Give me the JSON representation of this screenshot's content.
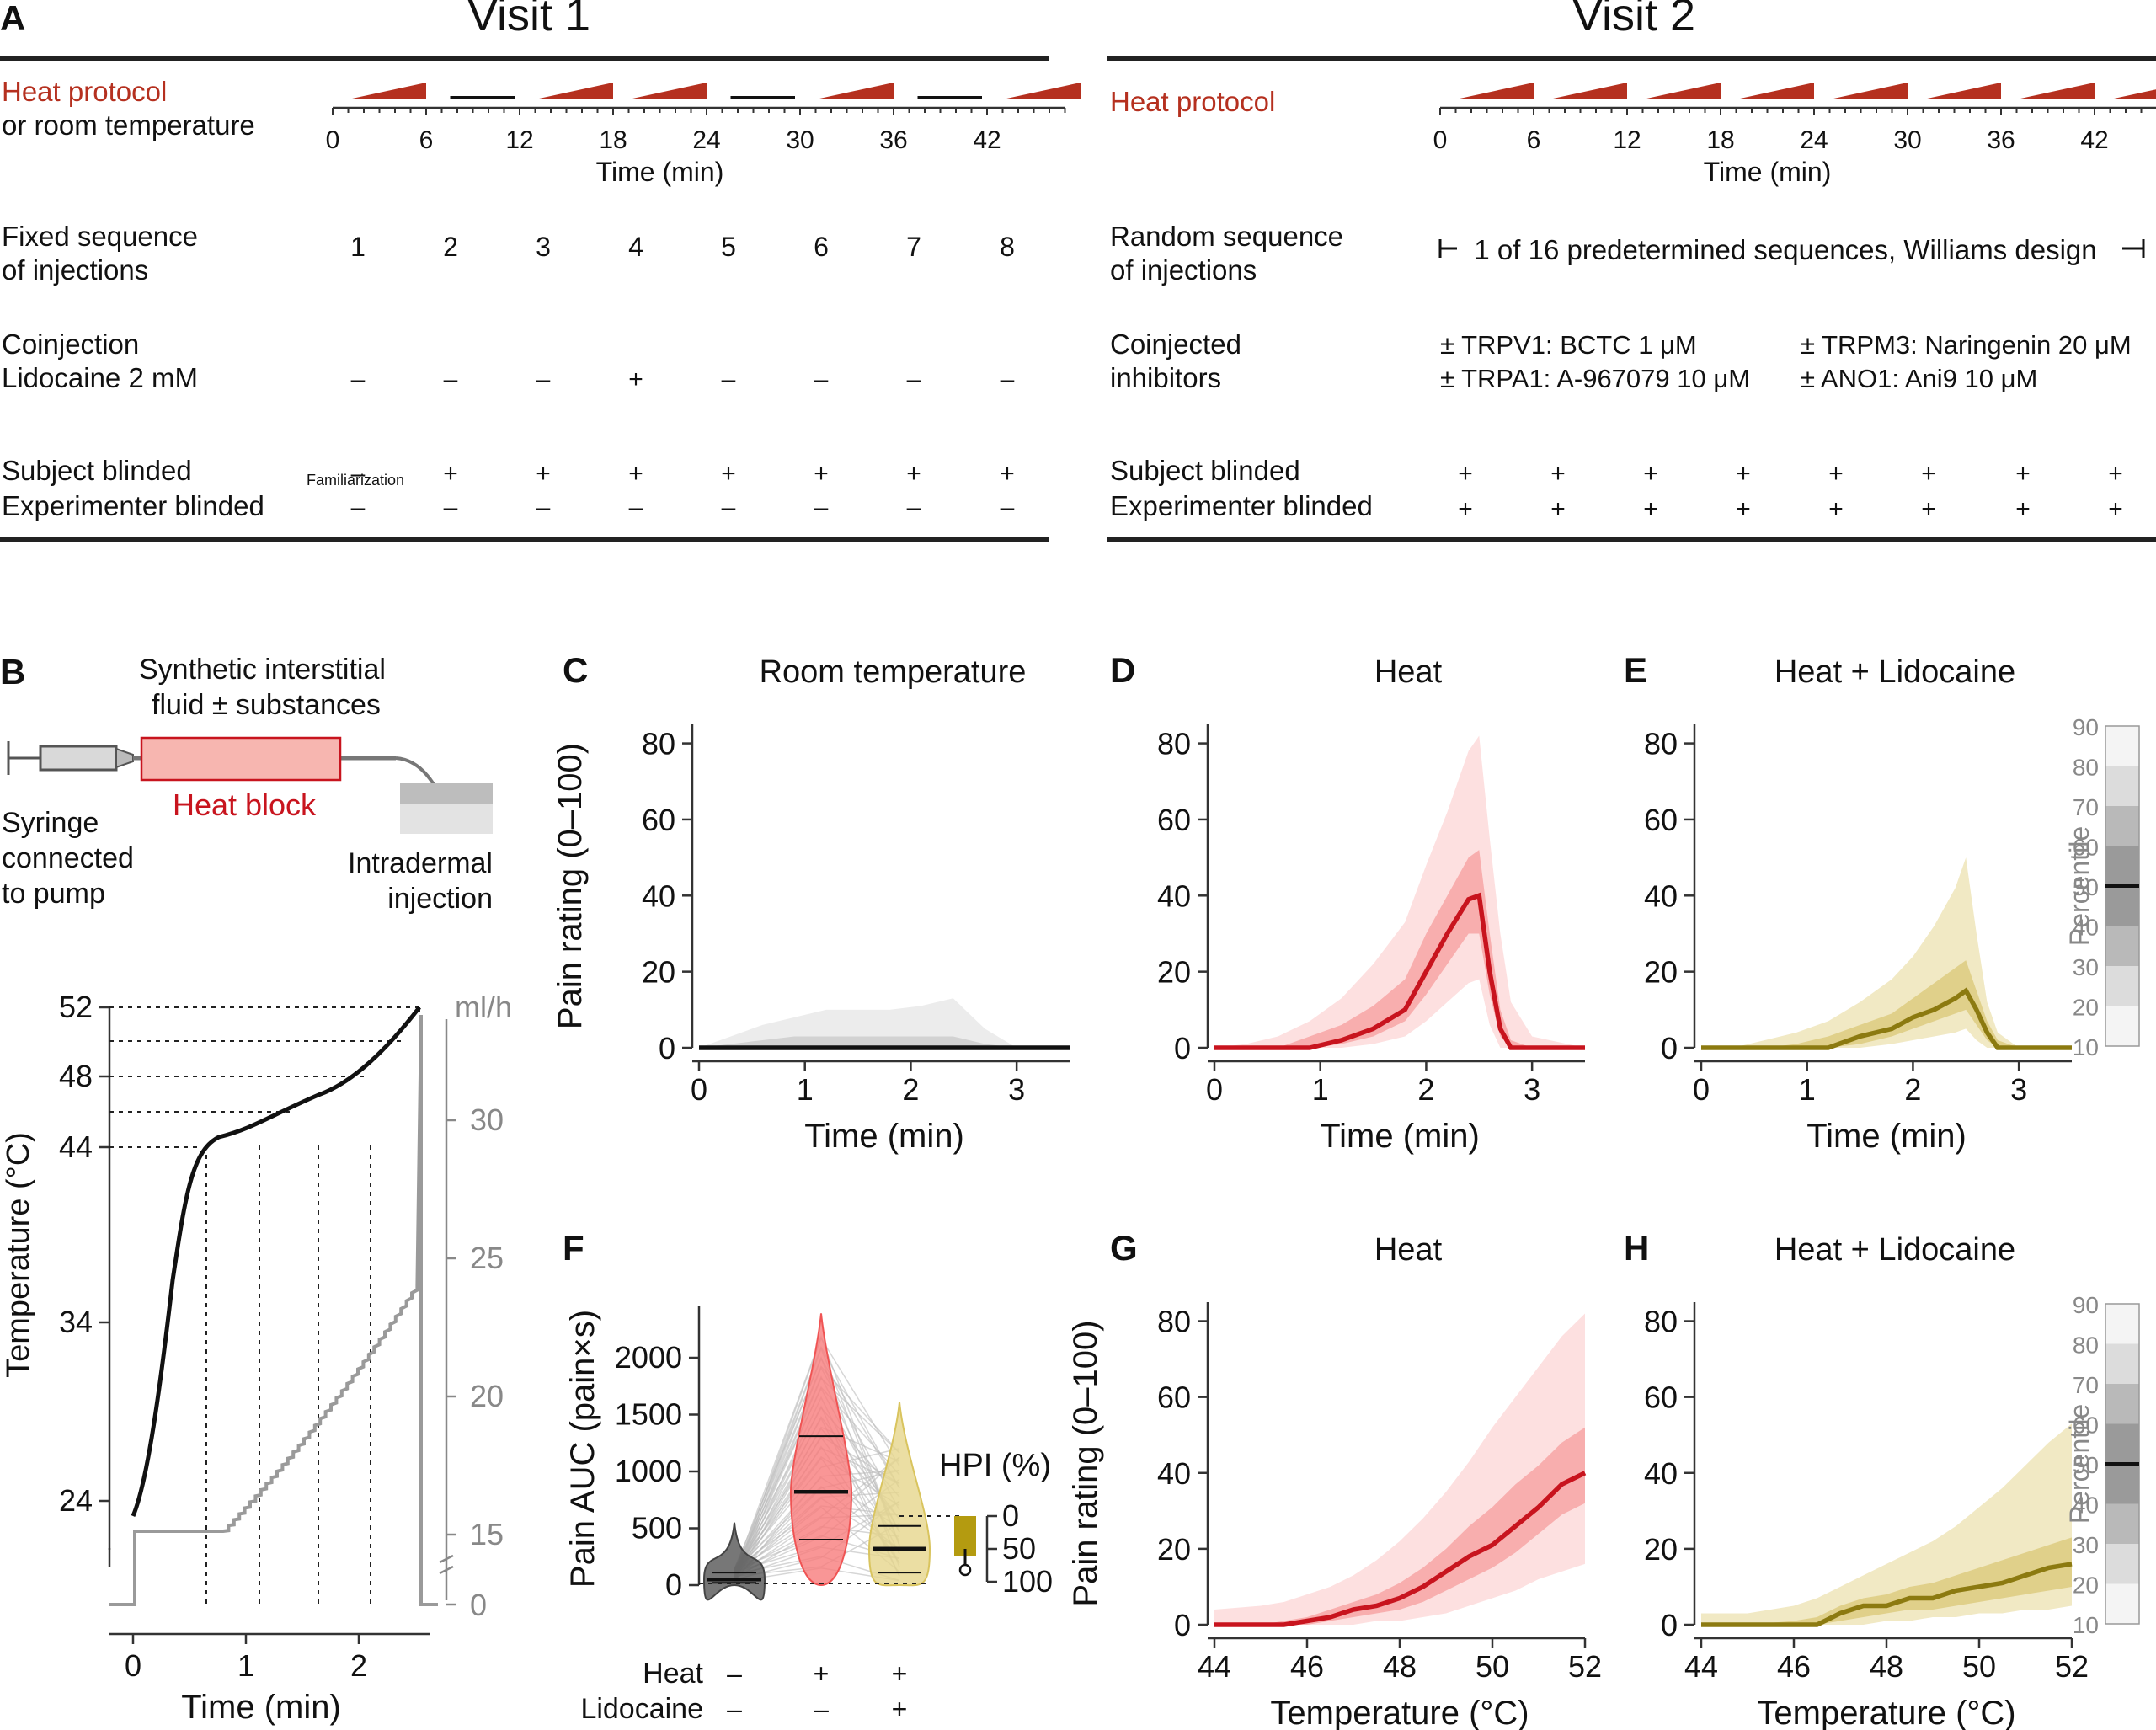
{
  "panel_a": {
    "letter": "A",
    "visit1": {
      "title": "Visit 1",
      "protocol_label_1": "Heat protocol",
      "protocol_label_2": "or room temperature",
      "time_ticks": [
        "0",
        "6",
        "12",
        "18",
        "24",
        "30",
        "36",
        "42"
      ],
      "time_label": "Time (min)",
      "protocol": [
        "heat",
        "room",
        "heat",
        "heat",
        "room",
        "heat",
        "room",
        "heat"
      ],
      "seq_label_1": "Fixed sequence",
      "seq_label_2": "of injections",
      "sequence": [
        "1",
        "2",
        "3",
        "4",
        "5",
        "6",
        "7",
        "8"
      ],
      "coinj_label_1": "Coinjection",
      "coinj_label_2": "Lidocaine 2 mM",
      "lidocaine": [
        "–",
        "–",
        "–",
        "+",
        "–",
        "–",
        "–",
        "–"
      ],
      "subject_label": "Subject blinded",
      "subject": [
        "–",
        "+",
        "+",
        "+",
        "+",
        "+",
        "+",
        "+"
      ],
      "familiarization": "Familiarization",
      "experimenter_label": "Experimenter blinded",
      "experimenter": [
        "–",
        "–",
        "–",
        "–",
        "–",
        "–",
        "–",
        "–"
      ]
    },
    "visit2": {
      "title": "Visit 2",
      "protocol_label": "Heat protocol",
      "time_ticks": [
        "0",
        "6",
        "12",
        "18",
        "24",
        "30",
        "36",
        "42"
      ],
      "time_label": "Time (min)",
      "seq_label_1": "Random sequence",
      "seq_label_2": "of injections",
      "seq_text": "1 of 16 predetermined sequences, Williams design",
      "inhib_label_1": "Coinjected",
      "inhib_label_2": "inhibitors",
      "inhibitors": [
        "± TRPV1: BCTC 1 μM",
        "± TRPM3: Naringenin 20 μM",
        "± TRPA1: A-967079 10 μM",
        "± ANO1: Ani9 10 μM"
      ],
      "subject_label": "Subject blinded",
      "experimenter_label": "Experimenter blinded",
      "subject": [
        "+",
        "+",
        "+",
        "+",
        "+",
        "+",
        "+",
        "+"
      ],
      "experimenter": [
        "+",
        "+",
        "+",
        "+",
        "+",
        "+",
        "+",
        "+"
      ]
    }
  },
  "panel_b": {
    "letter": "B",
    "fluid_1": "Synthetic interstitial",
    "fluid_2": "fluid ± substances",
    "heat_block": "Heat block",
    "syringe_1": "Syringe",
    "syringe_2": "connected",
    "syringe_3": "to pump",
    "intradermal_1": "Intradermal",
    "intradermal_2": "injection",
    "temp_ticks": [
      "24",
      "34",
      "44",
      "48",
      "52"
    ],
    "flow_ticks": [
      "0",
      "15",
      "20",
      "25",
      "30"
    ],
    "flow_unit": "ml/h",
    "ylabel": "Temperature (°C)",
    "xlabel": "Time (min)",
    "x_ticks": [
      "0",
      "1",
      "2"
    ]
  },
  "labels": {
    "c_letter": "C",
    "c_title": "Room temperature",
    "d_letter": "D",
    "d_title": "Heat",
    "e_letter": "E",
    "e_title": "Heat + Lidocaine",
    "f_letter": "F",
    "g_letter": "G",
    "g_title": "Heat",
    "h_letter": "H",
    "h_title": "Heat + Lidocaine",
    "pain_ylabel": "Pain rating (0–100)",
    "time_xlabel": "Time (min)",
    "temp_xlabel": "Temperature (°C)",
    "pain_ticks": [
      "0",
      "20",
      "40",
      "60",
      "80"
    ],
    "time_ticks": [
      "0",
      "1",
      "2",
      "3"
    ],
    "temp_ticks": [
      "44",
      "46",
      "48",
      "50",
      "52"
    ],
    "percentile_label": "Percentile",
    "percentile_ticks": [
      "10",
      "20",
      "30",
      "40",
      "50",
      "60",
      "70",
      "80",
      "90"
    ],
    "f_ylabel": "Pain AUC (pain×s)",
    "f_yticks": [
      "0",
      "500",
      "1000",
      "1500",
      "2000"
    ],
    "hpi_label": "HPI (%)",
    "hpi_ticks": [
      "0",
      "50",
      "100"
    ],
    "row_heat": "Heat",
    "row_lido": "Lidocaine",
    "heat_signs": [
      "–",
      "+",
      "+"
    ],
    "lido_signs": [
      "–",
      "–",
      "+"
    ]
  },
  "colors": {
    "heat": "#c8141e",
    "lidocaine": "#8c7a10",
    "protocol": "#b5301f"
  },
  "chart_data": [
    {
      "panel": "C",
      "type": "area",
      "title": "Room temperature",
      "xlabel": "Time (min)",
      "ylabel": "Pain rating (0–100)",
      "xlim": [
        0,
        3.5
      ],
      "ylim": [
        0,
        85
      ],
      "x": [
        0,
        0.3,
        0.6,
        0.9,
        1.2,
        1.5,
        1.8,
        2.1,
        2.4,
        2.7,
        3.0,
        3.5
      ],
      "median": [
        0,
        0,
        0,
        0,
        0,
        0,
        0,
        0,
        0,
        0,
        0,
        0
      ],
      "p80": [
        0,
        1,
        2,
        3,
        3,
        3,
        3,
        3,
        3,
        1,
        0,
        0
      ],
      "p90": [
        0,
        3,
        6,
        8,
        10,
        10,
        10,
        11,
        13,
        5,
        0,
        0
      ]
    },
    {
      "panel": "D",
      "type": "area",
      "title": "Heat",
      "xlabel": "Time (min)",
      "ylabel": "Pain rating (0–100)",
      "xlim": [
        0,
        3.5
      ],
      "ylim": [
        0,
        85
      ],
      "x": [
        0,
        0.3,
        0.6,
        0.9,
        1.2,
        1.5,
        1.8,
        2.0,
        2.2,
        2.4,
        2.5,
        2.6,
        2.7,
        2.8,
        3.0,
        3.5
      ],
      "median": [
        0,
        0,
        0,
        0,
        2,
        5,
        10,
        20,
        30,
        39,
        40,
        20,
        5,
        0,
        0,
        0
      ],
      "p30": [
        0,
        0,
        0,
        0,
        1,
        3,
        7,
        14,
        22,
        30,
        30,
        14,
        3,
        0,
        0,
        0
      ],
      "p70": [
        0,
        0,
        0,
        3,
        6,
        11,
        18,
        30,
        40,
        50,
        52,
        30,
        10,
        2,
        0,
        0
      ],
      "p10": [
        0,
        0,
        0,
        0,
        0,
        1,
        3,
        7,
        12,
        17,
        18,
        6,
        0,
        0,
        0,
        0
      ],
      "p90": [
        0,
        1,
        3,
        7,
        13,
        22,
        33,
        48,
        62,
        78,
        82,
        55,
        30,
        12,
        3,
        0
      ]
    },
    {
      "panel": "E",
      "type": "area",
      "title": "Heat + Lidocaine",
      "xlabel": "Time (min)",
      "ylabel": "Pain rating (0–100)",
      "xlim": [
        0,
        3.5
      ],
      "ylim": [
        0,
        85
      ],
      "x": [
        0,
        0.3,
        0.6,
        0.9,
        1.2,
        1.5,
        1.8,
        2.0,
        2.2,
        2.4,
        2.5,
        2.6,
        2.7,
        2.8,
        3.0,
        3.5
      ],
      "median": [
        0,
        0,
        0,
        0,
        0,
        3,
        5,
        8,
        10,
        13,
        15,
        10,
        4,
        0,
        0,
        0
      ],
      "p30": [
        0,
        0,
        0,
        0,
        0,
        1,
        3,
        5,
        7,
        9,
        10,
        6,
        2,
        0,
        0,
        0
      ],
      "p70": [
        0,
        0,
        0,
        1,
        3,
        6,
        9,
        13,
        17,
        21,
        23,
        15,
        7,
        2,
        0,
        0
      ],
      "p10": [
        0,
        0,
        0,
        0,
        0,
        0,
        1,
        2,
        3,
        4,
        5,
        2,
        0,
        0,
        0,
        0
      ],
      "p90": [
        0,
        0,
        2,
        4,
        7,
        12,
        18,
        24,
        32,
        42,
        50,
        30,
        12,
        4,
        0,
        0
      ]
    },
    {
      "panel": "F",
      "type": "violin",
      "ylabel": "Pain AUC (pain×s)",
      "ylim": [
        0,
        2400
      ],
      "groups": [
        {
          "heat": "–",
          "lidocaine": "–",
          "median": 50,
          "q1": 20,
          "q3": 110,
          "max": 550
        },
        {
          "heat": "+",
          "lidocaine": "–",
          "median": 820,
          "q1": 400,
          "q3": 1310,
          "max": 2390
        },
        {
          "heat": "+",
          "lidocaine": "+",
          "median": 320,
          "q1": 110,
          "q3": 520,
          "max": 1610
        }
      ],
      "hpi": {
        "label": "HPI (%)",
        "median": 63,
        "q1": 50,
        "q3": 82
      }
    },
    {
      "panel": "G",
      "type": "area",
      "title": "Heat",
      "xlabel": "Temperature (°C)",
      "ylabel": "Pain rating (0–100)",
      "xlim": [
        44,
        52
      ],
      "ylim": [
        0,
        85
      ],
      "x": [
        44,
        45,
        45.5,
        46,
        46.5,
        47,
        47.5,
        48,
        48.5,
        49,
        49.5,
        50,
        50.5,
        51,
        51.5,
        52
      ],
      "median": [
        0,
        0,
        0,
        1,
        2,
        4,
        5,
        7,
        10,
        14,
        18,
        21,
        26,
        31,
        37,
        40
      ],
      "p30": [
        0,
        0,
        0,
        0,
        1,
        2,
        3,
        4,
        6,
        9,
        12,
        15,
        19,
        24,
        29,
        32
      ],
      "p70": [
        0,
        0,
        1,
        2,
        4,
        6,
        8,
        11,
        15,
        20,
        26,
        31,
        37,
        42,
        48,
        52
      ],
      "p10": [
        0,
        0,
        0,
        0,
        0,
        0,
        1,
        1,
        2,
        3,
        5,
        7,
        9,
        12,
        14,
        16
      ],
      "p90": [
        4,
        5,
        6,
        8,
        10,
        13,
        17,
        22,
        28,
        35,
        43,
        52,
        60,
        68,
        76,
        82
      ]
    },
    {
      "panel": "H",
      "type": "area",
      "title": "Heat + Lidocaine",
      "xlabel": "Temperature (°C)",
      "ylabel": "Pain rating (0–100)",
      "xlim": [
        44,
        52
      ],
      "ylim": [
        0,
        85
      ],
      "x": [
        44,
        45,
        46,
        46.5,
        47,
        47.5,
        48,
        48.5,
        49,
        49.5,
        50,
        50.5,
        51,
        51.5,
        52
      ],
      "median": [
        0,
        0,
        0,
        0,
        3,
        5,
        5,
        7,
        7,
        9,
        10,
        11,
        13,
        15,
        16
      ],
      "p30": [
        0,
        0,
        0,
        0,
        1,
        2,
        3,
        4,
        4,
        5,
        6,
        7,
        8,
        9,
        10
      ],
      "p70": [
        0,
        0,
        1,
        2,
        5,
        7,
        8,
        10,
        11,
        13,
        15,
        17,
        19,
        21,
        23
      ],
      "p10": [
        0,
        0,
        0,
        0,
        0,
        0,
        1,
        1,
        2,
        2,
        3,
        3,
        4,
        4,
        5
      ],
      "p90": [
        3,
        3,
        5,
        7,
        10,
        13,
        16,
        19,
        22,
        26,
        31,
        36,
        42,
        48,
        53
      ]
    }
  ]
}
